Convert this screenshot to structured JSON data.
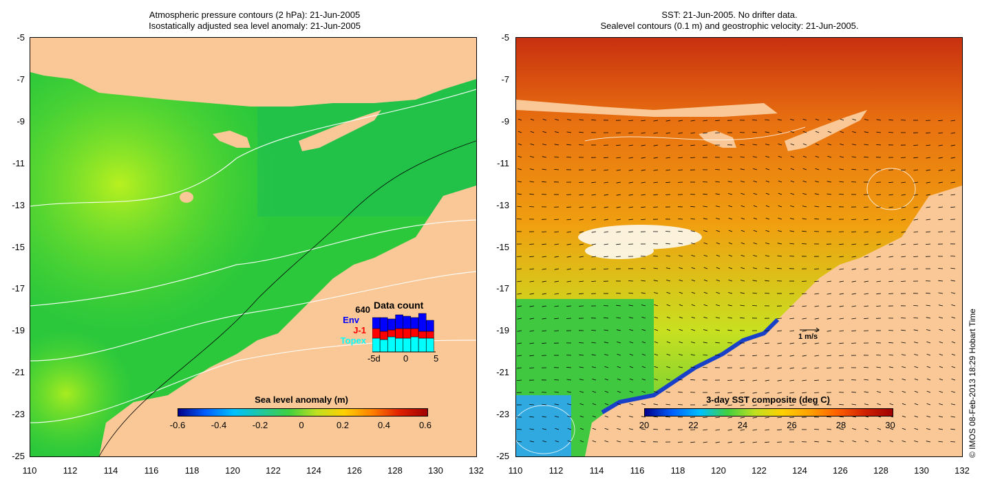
{
  "left": {
    "title_line1": "Atmospheric pressure contours (2 hPa): 21-Jun-2005",
    "title_line2": "Isostatically adjusted sea level anomaly: 21-Jun-2005",
    "colorbar_title": "Sea level anomaly (m)",
    "colorbar_ticks": [
      "-0.6",
      "-0.4",
      "-0.2",
      "0",
      "0.2",
      "0.4",
      "0.6"
    ],
    "data_count": {
      "title": "Data count",
      "total": "640",
      "env": "Env",
      "j1": "J-1",
      "topex": "Topex",
      "x_ticks": [
        "-5d",
        "0",
        "5"
      ],
      "colors": {
        "env": "#0000ff",
        "j1": "#ff0000",
        "topex": "#00ffff"
      }
    }
  },
  "right": {
    "title_line1": "SST: 21-Jun-2005. No drifter data.",
    "title_line2": "Sealevel contours (0.1 m) and geostrophic velocity: 21-Jun-2005.",
    "colorbar_title": "3-day SST composite (deg C)",
    "colorbar_ticks": [
      "20",
      "22",
      "24",
      "26",
      "28",
      "30"
    ],
    "scale_label": "1 m/s"
  },
  "y_axis": [
    "-5",
    "-7",
    "-9",
    "-11",
    "-13",
    "-15",
    "-17",
    "-19",
    "-21",
    "-23",
    "-25"
  ],
  "x_axis": [
    "110",
    "112",
    "114",
    "116",
    "118",
    "120",
    "122",
    "124",
    "126",
    "128",
    "130",
    "132"
  ],
  "credit": "© IMOS 08-Feb-2013 18:29 Hobart Time",
  "colors": {
    "land": "#f9c896",
    "ocean_left": "#22c832",
    "ocean_right": "#e8800a"
  }
}
